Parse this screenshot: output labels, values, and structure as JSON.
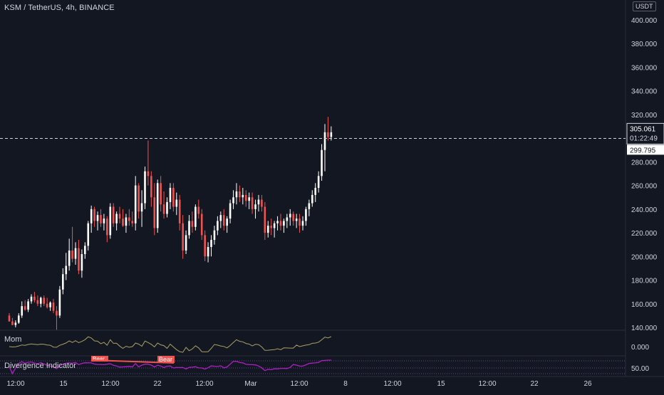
{
  "header": {
    "symbol_line": "KSM / TetherUS, 4h, BINANCE",
    "currency": "USDT"
  },
  "price_pane": {
    "last_price_label": "305.061",
    "countdown_label": "01:22:49",
    "prev_price_label": "299.795",
    "line_price": 299.795
  },
  "mom_pane": {
    "label": "Mom",
    "axis_label": "0.000"
  },
  "div_pane": {
    "label": "Divergence Indicator",
    "axis_label": "50.00",
    "tag_1": "Bear",
    "tag_2": "Bear"
  },
  "x_axis": {
    "ticks": [
      "12:00",
      "15",
      "12:00",
      "22",
      "12:00",
      "Mar",
      "12:00",
      "8",
      "12:00",
      "15",
      "12:00",
      "22",
      "26"
    ]
  },
  "colors": {
    "background": "#131722",
    "up_candle": "#ffffff",
    "down_candle": "#ef5350",
    "mom_line": "#a8a065",
    "div_line": "#b01dc4",
    "grid_text": "#d1d4dc"
  },
  "chart_data": {
    "type": "candlestick",
    "title": "KSM / TetherUS, 4h, BINANCE",
    "y_axis": {
      "ticks": [
        "400.000",
        "380.000",
        "360.000",
        "340.000",
        "320.000",
        "300.000",
        "280.000",
        "260.000",
        "240.000",
        "220.000",
        "200.000",
        "180.000",
        "160.000",
        "140.000"
      ],
      "range": [
        140,
        400
      ]
    },
    "candles": [
      [
        150,
        152,
        145,
        145
      ],
      [
        145,
        148,
        142,
        142
      ],
      [
        142,
        146,
        140,
        144
      ],
      [
        144,
        152,
        143,
        150
      ],
      [
        150,
        162,
        148,
        158
      ],
      [
        158,
        163,
        154,
        155
      ],
      [
        155,
        164,
        153,
        162
      ],
      [
        162,
        168,
        160,
        166
      ],
      [
        166,
        170,
        161,
        163
      ],
      [
        163,
        167,
        158,
        160
      ],
      [
        160,
        166,
        157,
        165
      ],
      [
        165,
        167,
        158,
        160
      ],
      [
        160,
        165,
        156,
        157
      ],
      [
        157,
        162,
        154,
        161
      ],
      [
        161,
        164,
        152,
        154
      ],
      [
        154,
        158,
        138,
        150
      ],
      [
        150,
        175,
        148,
        172
      ],
      [
        172,
        190,
        168,
        185
      ],
      [
        185,
        203,
        180,
        192
      ],
      [
        192,
        215,
        188,
        205
      ],
      [
        205,
        225,
        195,
        198
      ],
      [
        198,
        212,
        193,
        207
      ],
      [
        207,
        214,
        185,
        188
      ],
      [
        188,
        206,
        182,
        202
      ],
      [
        202,
        212,
        198,
        209
      ],
      [
        209,
        230,
        205,
        228
      ],
      [
        228,
        243,
        220,
        240
      ],
      [
        240,
        242,
        225,
        230
      ],
      [
        230,
        238,
        222,
        235
      ],
      [
        235,
        240,
        225,
        228
      ],
      [
        228,
        236,
        222,
        232
      ],
      [
        232,
        234,
        212,
        218
      ],
      [
        218,
        245,
        215,
        242
      ],
      [
        242,
        245,
        225,
        228
      ],
      [
        228,
        238,
        222,
        236
      ],
      [
        236,
        242,
        228,
        232
      ],
      [
        232,
        240,
        225,
        226
      ],
      [
        226,
        236,
        220,
        233
      ],
      [
        233,
        240,
        226,
        230
      ],
      [
        230,
        238,
        225,
        228
      ],
      [
        228,
        268,
        222,
        260
      ],
      [
        260,
        262,
        232,
        238
      ],
      [
        238,
        256,
        225,
        245
      ],
      [
        245,
        276,
        240,
        272
      ],
      [
        272,
        298,
        260,
        268
      ],
      [
        268,
        272,
        242,
        250
      ],
      [
        250,
        262,
        218,
        224
      ],
      [
        224,
        265,
        220,
        262
      ],
      [
        262,
        268,
        238,
        244
      ],
      [
        244,
        255,
        232,
        236
      ],
      [
        236,
        250,
        233,
        246
      ],
      [
        246,
        262,
        240,
        258
      ],
      [
        258,
        262,
        238,
        242
      ],
      [
        242,
        254,
        235,
        248
      ],
      [
        248,
        252,
        222,
        228
      ],
      [
        228,
        235,
        198,
        205
      ],
      [
        205,
        222,
        202,
        218
      ],
      [
        218,
        235,
        215,
        230
      ],
      [
        230,
        238,
        220,
        225
      ],
      [
        225,
        244,
        222,
        242
      ],
      [
        242,
        248,
        232,
        236
      ],
      [
        236,
        240,
        214,
        218
      ],
      [
        218,
        222,
        196,
        200
      ],
      [
        200,
        212,
        195,
        208
      ],
      [
        208,
        218,
        200,
        214
      ],
      [
        214,
        226,
        210,
        222
      ],
      [
        222,
        234,
        218,
        230
      ],
      [
        230,
        238,
        224,
        235
      ],
      [
        235,
        240,
        222,
        226
      ],
      [
        226,
        234,
        220,
        232
      ],
      [
        232,
        248,
        228,
        245
      ],
      [
        245,
        256,
        240,
        250
      ],
      [
        250,
        262,
        244,
        255
      ],
      [
        255,
        260,
        246,
        250
      ],
      [
        250,
        258,
        244,
        252
      ],
      [
        252,
        256,
        242,
        247
      ],
      [
        247,
        254,
        240,
        250
      ],
      [
        250,
        254,
        236,
        240
      ],
      [
        240,
        248,
        232,
        244
      ],
      [
        244,
        252,
        238,
        248
      ],
      [
        248,
        252,
        238,
        242
      ],
      [
        242,
        246,
        214,
        220
      ],
      [
        220,
        230,
        216,
        226
      ],
      [
        226,
        232,
        218,
        224
      ],
      [
        224,
        230,
        216,
        228
      ],
      [
        228,
        234,
        222,
        230
      ],
      [
        230,
        236,
        222,
        226
      ],
      [
        226,
        232,
        220,
        230
      ],
      [
        230,
        236,
        224,
        233
      ],
      [
        233,
        240,
        226,
        236
      ],
      [
        236,
        238,
        226,
        230
      ],
      [
        230,
        236,
        224,
        232
      ],
      [
        232,
        236,
        220,
        226
      ],
      [
        226,
        234,
        222,
        230
      ],
      [
        230,
        242,
        226,
        240
      ],
      [
        240,
        248,
        234,
        245
      ],
      [
        245,
        256,
        242,
        252
      ],
      [
        252,
        262,
        246,
        258
      ],
      [
        258,
        272,
        254,
        268
      ],
      [
        268,
        295,
        264,
        290
      ],
      [
        290,
        312,
        272,
        305
      ],
      [
        305,
        318,
        298,
        301
      ],
      [
        301,
        310,
        298,
        305
      ]
    ]
  }
}
